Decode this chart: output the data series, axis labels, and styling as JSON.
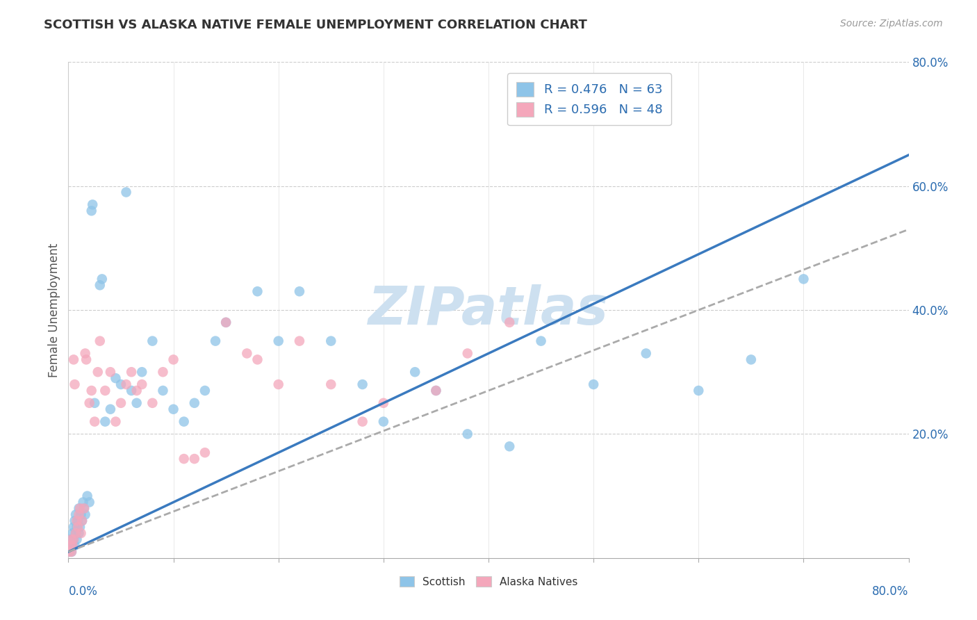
{
  "title": "SCOTTISH VS ALASKA NATIVE FEMALE UNEMPLOYMENT CORRELATION CHART",
  "source": "Source: ZipAtlas.com",
  "ylabel": "Female Unemployment",
  "right_yticklabels": [
    "",
    "20.0%",
    "40.0%",
    "60.0%",
    "80.0%"
  ],
  "right_ytick_vals": [
    0.0,
    0.2,
    0.4,
    0.6,
    0.8
  ],
  "legend1_label": "R = 0.476   N = 63",
  "legend2_label": "R = 0.596   N = 48",
  "legend_bottom": [
    "Scottish",
    "Alaska Natives"
  ],
  "blue_color": "#8ec4e8",
  "pink_color": "#f4a7bb",
  "blue_line_color": "#3a7abf",
  "pink_line_color": "#c0556e",
  "gray_dash_color": "#aaaaaa",
  "watermark": "ZIPatlas",
  "watermark_color": "#cde0f0",
  "text_color_blue": "#2b6cb0",
  "xlim": [
    0.0,
    0.8
  ],
  "ylim": [
    0.0,
    0.8
  ],
  "blue_trend_x0": 0.0,
  "blue_trend_y0": 0.01,
  "blue_trend_x1": 0.8,
  "blue_trend_y1": 0.65,
  "pink_trend_x0": 0.0,
  "pink_trend_y0": 0.01,
  "pink_trend_x1": 0.8,
  "pink_trend_y1": 0.53,
  "blue_scatter": [
    [
      0.001,
      0.01
    ],
    [
      0.002,
      0.02
    ],
    [
      0.002,
      0.03
    ],
    [
      0.003,
      0.01
    ],
    [
      0.003,
      0.02
    ],
    [
      0.004,
      0.02
    ],
    [
      0.004,
      0.04
    ],
    [
      0.005,
      0.03
    ],
    [
      0.005,
      0.05
    ],
    [
      0.006,
      0.02
    ],
    [
      0.006,
      0.06
    ],
    [
      0.007,
      0.04
    ],
    [
      0.007,
      0.07
    ],
    [
      0.008,
      0.03
    ],
    [
      0.008,
      0.05
    ],
    [
      0.009,
      0.06
    ],
    [
      0.01,
      0.04
    ],
    [
      0.01,
      0.08
    ],
    [
      0.011,
      0.05
    ],
    [
      0.012,
      0.07
    ],
    [
      0.013,
      0.06
    ],
    [
      0.014,
      0.09
    ],
    [
      0.015,
      0.08
    ],
    [
      0.016,
      0.07
    ],
    [
      0.018,
      0.1
    ],
    [
      0.02,
      0.09
    ],
    [
      0.022,
      0.56
    ],
    [
      0.023,
      0.57
    ],
    [
      0.025,
      0.25
    ],
    [
      0.03,
      0.44
    ],
    [
      0.032,
      0.45
    ],
    [
      0.035,
      0.22
    ],
    [
      0.04,
      0.24
    ],
    [
      0.045,
      0.29
    ],
    [
      0.05,
      0.28
    ],
    [
      0.055,
      0.59
    ],
    [
      0.06,
      0.27
    ],
    [
      0.065,
      0.25
    ],
    [
      0.07,
      0.3
    ],
    [
      0.08,
      0.35
    ],
    [
      0.09,
      0.27
    ],
    [
      0.1,
      0.24
    ],
    [
      0.11,
      0.22
    ],
    [
      0.12,
      0.25
    ],
    [
      0.13,
      0.27
    ],
    [
      0.14,
      0.35
    ],
    [
      0.15,
      0.38
    ],
    [
      0.18,
      0.43
    ],
    [
      0.2,
      0.35
    ],
    [
      0.22,
      0.43
    ],
    [
      0.25,
      0.35
    ],
    [
      0.28,
      0.28
    ],
    [
      0.3,
      0.22
    ],
    [
      0.33,
      0.3
    ],
    [
      0.35,
      0.27
    ],
    [
      0.38,
      0.2
    ],
    [
      0.42,
      0.18
    ],
    [
      0.45,
      0.35
    ],
    [
      0.5,
      0.28
    ],
    [
      0.55,
      0.33
    ],
    [
      0.6,
      0.27
    ],
    [
      0.65,
      0.32
    ],
    [
      0.7,
      0.45
    ]
  ],
  "pink_scatter": [
    [
      0.001,
      0.01
    ],
    [
      0.002,
      0.02
    ],
    [
      0.003,
      0.01
    ],
    [
      0.003,
      0.03
    ],
    [
      0.004,
      0.02
    ],
    [
      0.005,
      0.03
    ],
    [
      0.005,
      0.32
    ],
    [
      0.006,
      0.28
    ],
    [
      0.007,
      0.04
    ],
    [
      0.008,
      0.06
    ],
    [
      0.009,
      0.05
    ],
    [
      0.01,
      0.07
    ],
    [
      0.011,
      0.08
    ],
    [
      0.012,
      0.04
    ],
    [
      0.013,
      0.06
    ],
    [
      0.015,
      0.08
    ],
    [
      0.016,
      0.33
    ],
    [
      0.017,
      0.32
    ],
    [
      0.02,
      0.25
    ],
    [
      0.022,
      0.27
    ],
    [
      0.025,
      0.22
    ],
    [
      0.028,
      0.3
    ],
    [
      0.03,
      0.35
    ],
    [
      0.035,
      0.27
    ],
    [
      0.04,
      0.3
    ],
    [
      0.045,
      0.22
    ],
    [
      0.05,
      0.25
    ],
    [
      0.055,
      0.28
    ],
    [
      0.06,
      0.3
    ],
    [
      0.065,
      0.27
    ],
    [
      0.07,
      0.28
    ],
    [
      0.08,
      0.25
    ],
    [
      0.09,
      0.3
    ],
    [
      0.1,
      0.32
    ],
    [
      0.11,
      0.16
    ],
    [
      0.12,
      0.16
    ],
    [
      0.13,
      0.17
    ],
    [
      0.15,
      0.38
    ],
    [
      0.17,
      0.33
    ],
    [
      0.18,
      0.32
    ],
    [
      0.2,
      0.28
    ],
    [
      0.22,
      0.35
    ],
    [
      0.25,
      0.28
    ],
    [
      0.28,
      0.22
    ],
    [
      0.3,
      0.25
    ],
    [
      0.35,
      0.27
    ],
    [
      0.38,
      0.33
    ],
    [
      0.42,
      0.38
    ]
  ]
}
